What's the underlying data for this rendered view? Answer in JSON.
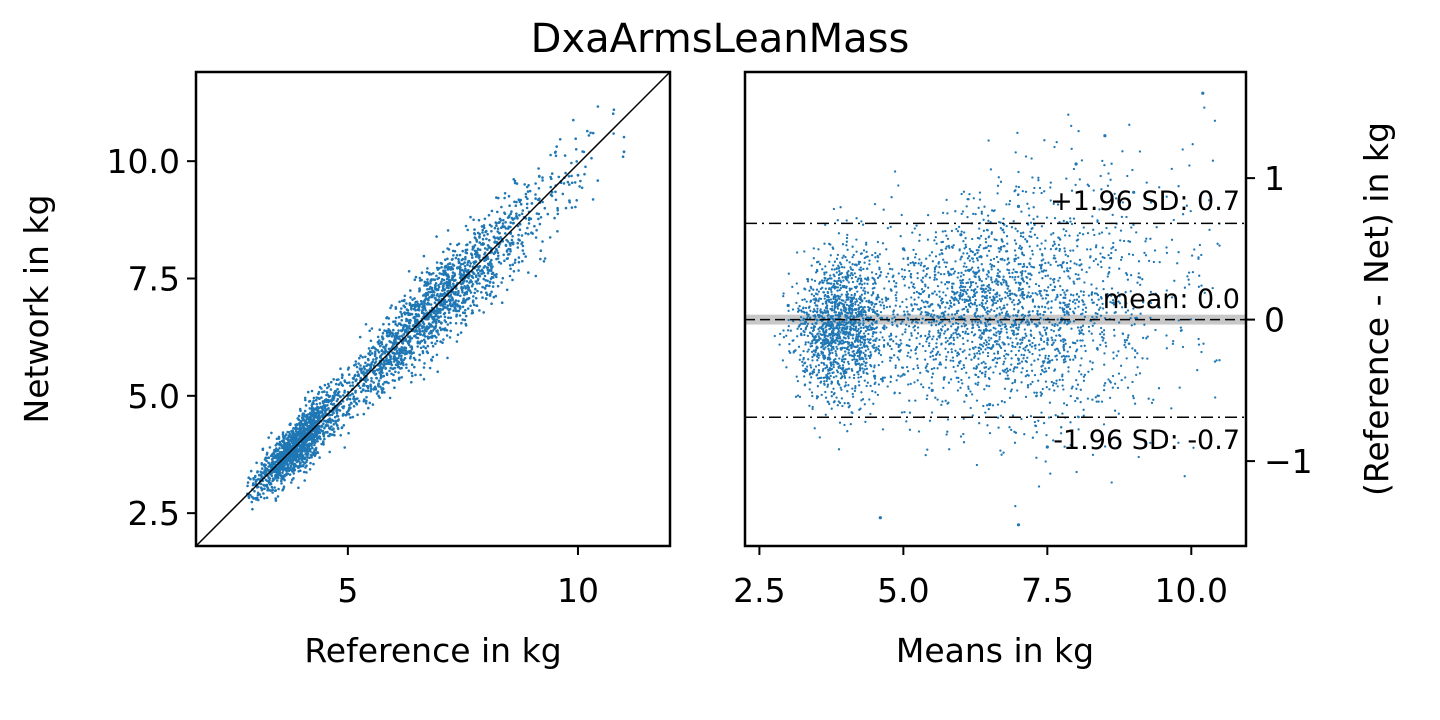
{
  "chart_data": {
    "title": "DxaArmsLeanMass",
    "panels": [
      {
        "type": "scatter",
        "xlabel": "Reference in kg",
        "ylabel": "Network in kg",
        "xlim": [
          1.7,
          12.0
        ],
        "ylim": [
          1.8,
          11.9
        ],
        "xticks": [
          5,
          10
        ],
        "xtick_labels": [
          "5",
          "10"
        ],
        "yticks": [
          2.5,
          5.0,
          7.5,
          10.0
        ],
        "ytick_labels": [
          "2.5",
          "5.0",
          "7.5",
          "10.0"
        ],
        "identity_line": true,
        "point_color": "#1f77b4",
        "sample_points": [
          {
            "x": 3.0,
            "y": 3.1
          },
          {
            "x": 3.5,
            "y": 3.6
          },
          {
            "x": 3.9,
            "y": 3.8
          },
          {
            "x": 4.2,
            "y": 4.3
          },
          {
            "x": 4.6,
            "y": 4.5
          },
          {
            "x": 5.0,
            "y": 5.0
          },
          {
            "x": 5.5,
            "y": 5.6
          },
          {
            "x": 6.0,
            "y": 6.1
          },
          {
            "x": 6.5,
            "y": 6.6
          },
          {
            "x": 7.0,
            "y": 7.0
          },
          {
            "x": 7.5,
            "y": 7.4
          },
          {
            "x": 8.0,
            "y": 7.9
          },
          {
            "x": 8.5,
            "y": 8.6
          },
          {
            "x": 9.0,
            "y": 9.1
          },
          {
            "x": 10.0,
            "y": 9.7
          },
          {
            "x": 11.0,
            "y": 10.2
          }
        ]
      },
      {
        "type": "scatter",
        "xlabel": "Means in kg",
        "ylabel": "(Reference - Net) in kg",
        "xlim": [
          2.25,
          10.95
        ],
        "ylim": [
          -1.6,
          1.75
        ],
        "xticks": [
          2.5,
          5.0,
          7.5,
          10.0
        ],
        "xtick_labels": [
          "2.5",
          "5.0",
          "7.5",
          "10.0"
        ],
        "yticks": [
          -1,
          0,
          1
        ],
        "ytick_labels": [
          "−1",
          "0",
          "1"
        ],
        "point_color": "#1f77b4",
        "mean": 0.0,
        "upper_limit": 0.68,
        "lower_limit": -0.69,
        "sample_points": [
          {
            "x": 3.0,
            "y": 0.1
          },
          {
            "x": 3.5,
            "y": -0.2
          },
          {
            "x": 4.0,
            "y": 0.3
          },
          {
            "x": 4.5,
            "y": -0.4
          },
          {
            "x": 5.0,
            "y": 0.5
          },
          {
            "x": 5.5,
            "y": -0.5
          },
          {
            "x": 6.0,
            "y": 0.6
          },
          {
            "x": 6.5,
            "y": -0.6
          },
          {
            "x": 7.0,
            "y": 0.8
          },
          {
            "x": 7.5,
            "y": -0.9
          },
          {
            "x": 8.0,
            "y": 1.1
          },
          {
            "x": 8.5,
            "y": 1.3
          },
          {
            "x": 9.0,
            "y": 0.9
          },
          {
            "x": 10.2,
            "y": 1.6
          },
          {
            "x": 7.0,
            "y": -1.45
          },
          {
            "x": 4.6,
            "y": -1.4
          }
        ],
        "annotations": {
          "upper": "+1.96 SD: 0.7",
          "mean": "mean: 0.0",
          "lower": "-1.96 SD: -0.7"
        }
      }
    ]
  }
}
